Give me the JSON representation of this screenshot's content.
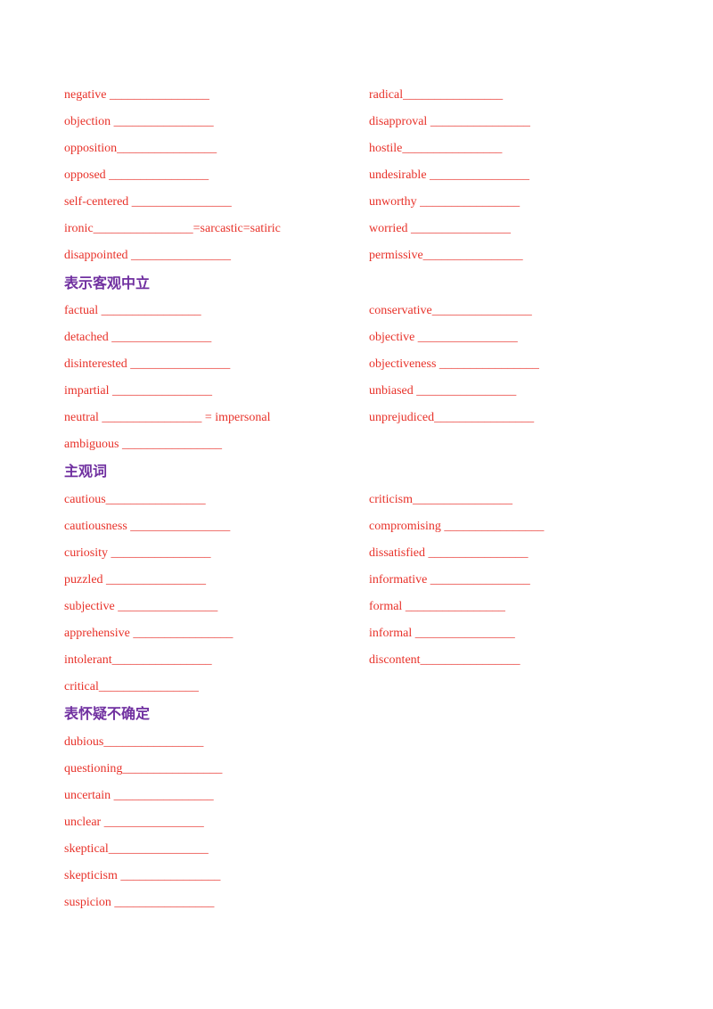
{
  "section1": {
    "left": [
      "negative ________________",
      "objection ________________",
      "opposition________________",
      "opposed ________________",
      "self-centered ________________",
      "ironic________________=sarcastic=satiric",
      "disappointed ________________"
    ],
    "right": [
      "radical________________",
      "disapproval ________________",
      "hostile________________",
      "undesirable ________________",
      "unworthy ________________",
      "worried ________________",
      "permissive________________"
    ]
  },
  "section2": {
    "heading": "表示客观中立",
    "left": [
      "factual ________________",
      "detached ________________",
      "disinterested ________________",
      "impartial ________________",
      "neutral ________________ = impersonal",
      "ambiguous ________________"
    ],
    "right": [
      "conservative________________",
      "objective ________________",
      "objectiveness ________________",
      "unbiased ________________",
      "unprejudiced________________"
    ]
  },
  "section3": {
    "heading": "主观词",
    "left": [
      "cautious________________",
      "cautiousness ________________",
      "curiosity ________________",
      "puzzled ________________",
      "subjective ________________",
      "apprehensive ________________",
      "intolerant________________",
      "critical________________"
    ],
    "right": [
      "criticism________________",
      "compromising ________________",
      "dissatisfied ________________",
      "informative ________________",
      "formal ________________",
      "informal ________________",
      "discontent________________"
    ]
  },
  "section4": {
    "heading": "表怀疑不确定",
    "left": [
      "dubious________________",
      "questioning________________",
      "uncertain ________________",
      "unclear ________________",
      "skeptical________________",
      "skepticism ________________",
      "suspicion ________________"
    ]
  }
}
